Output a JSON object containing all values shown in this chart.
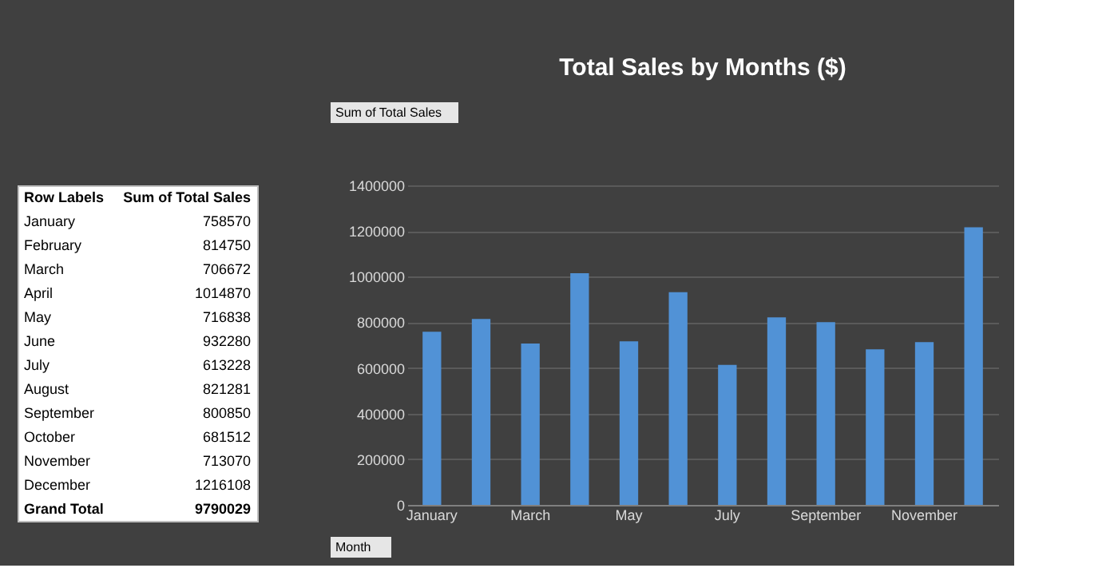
{
  "chart_data": [
    {
      "type": "other",
      "annotations": [
        "Row Labels",
        "Sum of Total Sales"
      ],
      "categories": [
        "January",
        "February",
        "March",
        "April",
        "May",
        "June",
        "July",
        "August",
        "September",
        "October",
        "November",
        "December",
        "Grand Total"
      ],
      "values": [
        758570,
        814750,
        706672,
        1014870,
        716838,
        932280,
        613228,
        821281,
        800850,
        681512,
        713070,
        1216108,
        9790029
      ],
      "data_labels": true
    },
    {
      "type": "bar",
      "title": "Total Sales by Months ($)",
      "categories": [
        "January",
        null,
        "March",
        null,
        "May",
        null,
        "July",
        null,
        "September",
        null,
        "November",
        null
      ],
      "values": [
        758570,
        814750,
        706672,
        1014870,
        716838,
        932280,
        613228,
        821281,
        800850,
        681512,
        713070,
        1216108
      ],
      "color": "#5192d6",
      "ylim": [
        0,
        1400000
      ],
      "yticks": [
        0,
        200000,
        400000,
        600000,
        800000,
        1000000,
        1200000,
        1400000
      ],
      "grid": "y",
      "annotations": [
        "Sum of Total Sales",
        "Month"
      ]
    }
  ]
}
